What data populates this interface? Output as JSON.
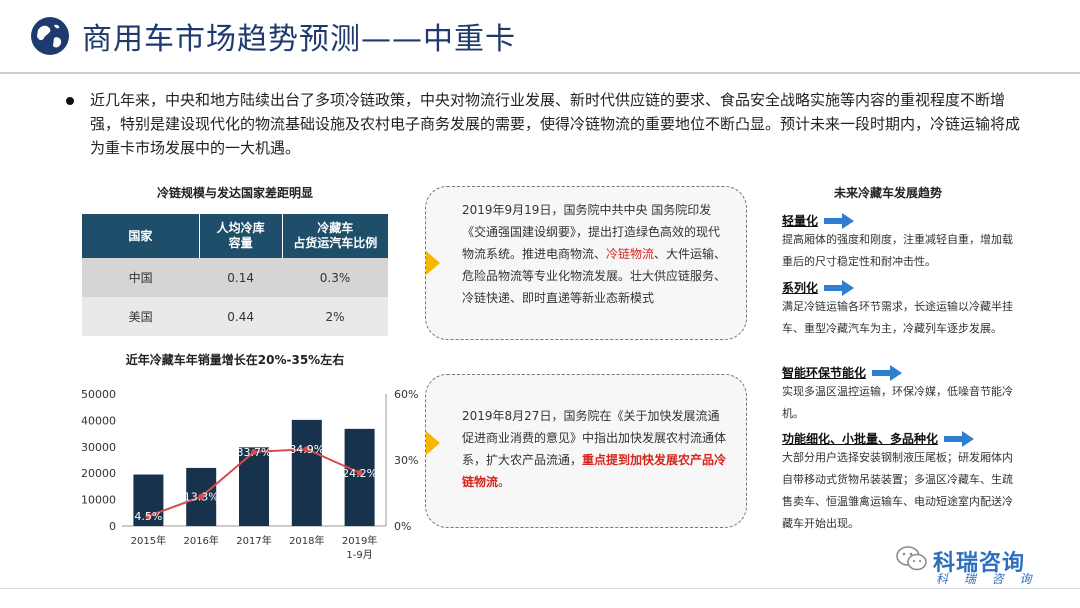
{
  "header": {
    "title": "商用车市场趋势预测——中重卡"
  },
  "intro": {
    "text": "近几年来，中央和地方陆续出台了多项冷链政策，中央对物流行业发展、新时代供应链的要求、食品安全战略实施等内容的重视程度不断增强，特别是建设现代化的物流基础设施及农村电子商务发展的需要，使得冷链物流的重要地位不断凸显。预计未来一段时期内，冷链运输将成为重卡市场发展中的一大机遇。"
  },
  "table": {
    "title": "冷链规模与发达国家差距明显",
    "headers": [
      "国家",
      "人均冷库\n容量",
      "冷藏车\n占货运汽车比例"
    ],
    "rows": [
      [
        "中国",
        "0.14",
        "0.3%"
      ],
      [
        "美国",
        "0.44",
        "2%"
      ]
    ]
  },
  "callouts": [
    {
      "pre": "2019年9月19日，国务院中共中央 国务院印发《交通强国建设纲要》，提出打造绿色高效的现代物流系统。推进电商物流、",
      "hl": "冷链物流",
      "post": "、大件运输、危险品物流等专业化物流发展。壮大供应链服务、冷链快递、即时直递等新业态新模式"
    },
    {
      "pre": "2019年8月27日，国务院在《关于加快发展流通促进商业消费的意见》中指出加快发展农村流通体系，扩大农产品流通，",
      "hl": "重点提到加快发展农产品冷链物流",
      "post": "。"
    }
  ],
  "trends": {
    "title": "未来冷藏车发展趋势",
    "items": [
      {
        "head": "轻量化",
        "body": "提高厢体的强度和刚度，注重减轻自重，增加载重后的尺寸稳定性和耐冲击性。"
      },
      {
        "head": "系列化",
        "body": "满足冷链运输各环节需求，长途运输以冷藏半挂车、重型冷藏汽车为主，冷藏列车逐步发展。"
      },
      {
        "head": "智能环保节能化",
        "body": "实现多温区温控运输，环保冷媒，低噪音节能冷机。"
      },
      {
        "head": "功能细化、小批量、多品种化",
        "body": "大部分用户选择安装钢制液压尾板；研发厢体内自带移动式货物吊装装置；多温区冷藏车、生疏售卖车、恒温雏禽运输车、电动短途室内配送冷藏车开始出现。"
      }
    ]
  },
  "chart_data": {
    "type": "bar",
    "title": "近年冷藏车年销量增长在20%-35%左右",
    "categories": [
      "2015年",
      "2016年",
      "2017年",
      "2018年",
      "2019年\n1-9月"
    ],
    "series": [
      {
        "type": "bar",
        "values": [
          19500,
          22000,
          29800,
          40200,
          36800
        ]
      },
      {
        "type": "line",
        "axis": "right",
        "values": [
          4.5,
          13.3,
          33.7,
          34.9,
          24.2
        ],
        "labels": [
          "4.5%",
          "13.3%",
          "33.7%",
          "34.9%",
          "24.2%"
        ]
      }
    ],
    "y_left": {
      "ticks": [
        "0",
        "10000",
        "20000",
        "30000",
        "40000",
        "50000"
      ],
      "range": [
        0,
        50000
      ]
    },
    "y_right": {
      "ticks": [
        "0%",
        "30%",
        "60%"
      ],
      "range": [
        0,
        60
      ]
    },
    "colors": {
      "bar": "#17324d",
      "line": "#d94b4b"
    }
  },
  "branding": {
    "name": "科瑞咨询",
    "sub": "科 瑞 咨 询"
  }
}
